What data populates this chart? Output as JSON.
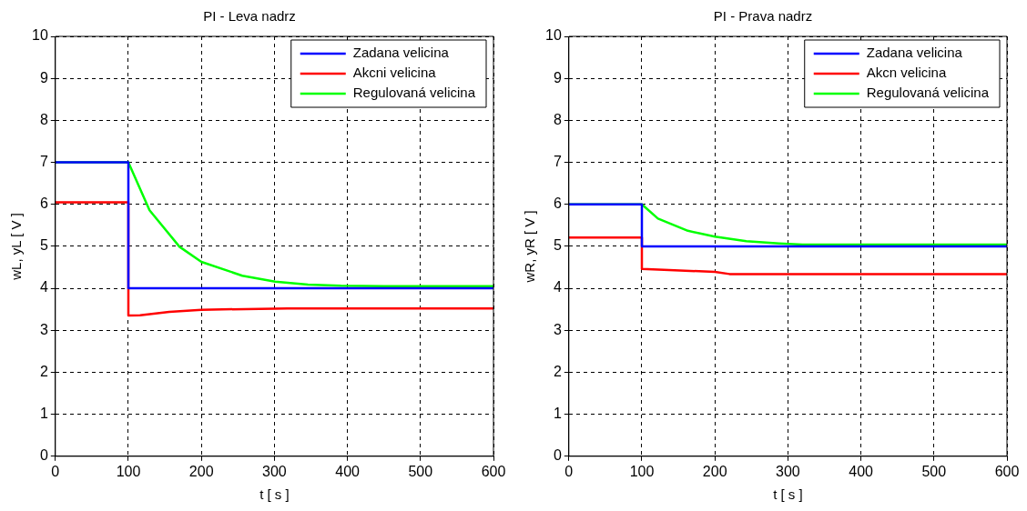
{
  "chart_data": [
    {
      "type": "line",
      "title": "PI - Leva nadrz",
      "xlabel": "t [ s ]",
      "ylabel": "wL, yL [ V ]",
      "xlim": [
        0,
        600
      ],
      "xticks": [
        0,
        100,
        200,
        300,
        400,
        500,
        600
      ],
      "ylim": [
        0,
        10
      ],
      "yticks": [
        0,
        1,
        2,
        3,
        4,
        5,
        6,
        7,
        8,
        9,
        10
      ],
      "grid": true,
      "legend": "top right",
      "line_style": "solid",
      "marker": "none",
      "series": [
        {
          "name": "Zadana velicina",
          "color": "#0000ff",
          "x": [
            0,
            100,
            100,
            600
          ],
          "values": [
            7,
            7,
            4,
            4
          ]
        },
        {
          "name": "Akcni velicina",
          "color": "#ff0000",
          "x": [
            0,
            100,
            100,
            116,
            156,
            200,
            318,
            600
          ],
          "values": [
            6.05,
            6.05,
            3.35,
            3.36,
            3.44,
            3.49,
            3.52,
            3.52
          ]
        },
        {
          "name": "Regulovaná velicina",
          "color": "#00ff00",
          "x": [
            0,
            100,
            129,
            170,
            200,
            256,
            301,
            346,
            391,
            450,
            600
          ],
          "values": [
            7,
            7,
            5.86,
            4.99,
            4.63,
            4.3,
            4.16,
            4.09,
            4.06,
            4.05,
            4.05
          ]
        }
      ]
    },
    {
      "type": "line",
      "title": "PI - Prava nadrz",
      "xlabel": "t [ s ]",
      "ylabel": "wR, yR [ V ]",
      "xlim": [
        0,
        600
      ],
      "xticks": [
        0,
        100,
        200,
        300,
        400,
        500,
        600
      ],
      "ylim": [
        0,
        10
      ],
      "yticks": [
        0,
        1,
        2,
        3,
        4,
        5,
        6,
        7,
        8,
        9,
        10
      ],
      "grid": true,
      "legend": "top right",
      "line_style": "solid",
      "marker": "none",
      "series": [
        {
          "name": "Zadana velicina",
          "color": "#0000ff",
          "x": [
            0,
            100,
            100,
            600
          ],
          "values": [
            6,
            6,
            5,
            5
          ]
        },
        {
          "name": "Akcn velicina",
          "color": "#ff0000",
          "x": [
            0,
            100,
            100,
            130,
            200,
            220,
            600
          ],
          "values": [
            5.21,
            5.21,
            4.46,
            4.44,
            4.39,
            4.34,
            4.34
          ]
        },
        {
          "name": "Regulovaná velicina",
          "color": "#00ff00",
          "x": [
            0,
            100,
            122,
            163,
            200,
            243,
            288,
            320,
            600
          ],
          "values": [
            6,
            6,
            5.66,
            5.37,
            5.23,
            5.12,
            5.07,
            5.04,
            5.04
          ]
        }
      ]
    }
  ]
}
